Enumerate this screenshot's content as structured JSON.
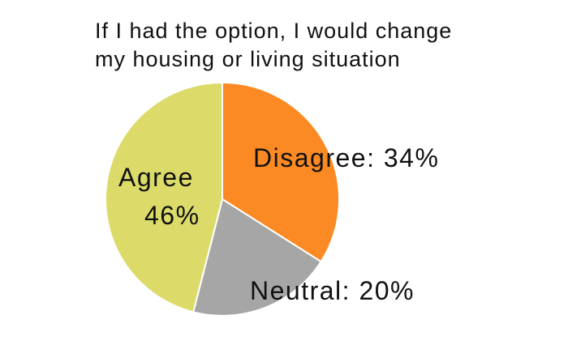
{
  "chart_data": {
    "type": "pie",
    "title_lines": [
      "If I had the option, I would change",
      "my housing or living situation"
    ],
    "slices": [
      {
        "name": "Disagree",
        "value": 34,
        "color": "#fb8a24",
        "label": "Disagree: 34%"
      },
      {
        "name": "Neutral",
        "value": 20,
        "color": "#a6a6a6",
        "label": "Neutral: 20%"
      },
      {
        "name": "Agree",
        "value": 46,
        "color": "#dcdb6a",
        "label_lines": [
          "Agree",
          "46%"
        ]
      }
    ],
    "legend": "none"
  }
}
